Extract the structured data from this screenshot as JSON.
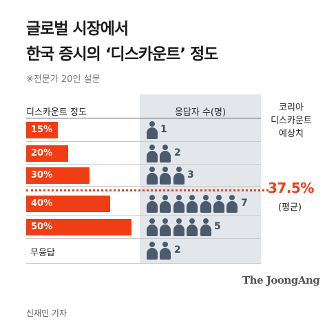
{
  "title_lines": [
    "글로벌 시장에서",
    "한국 증시의 ‘디스카운트’ 정도"
  ],
  "subtitle": "※전문가 20인 설문",
  "headers": {
    "left": "디스카운트 정도",
    "middle": "응답자 수(명)",
    "right_lines": [
      "코리아",
      "디스카운트",
      "예상치"
    ]
  },
  "average": {
    "value": "37.5%",
    "note": "(평균)"
  },
  "brand": "The JoongAng",
  "credit": "신재민 기자",
  "colors": {
    "bar": "#f03e14",
    "person": "#4a5b6d",
    "panel": "#e3e7ec",
    "average_line": "#f03e14"
  },
  "chart_data": {
    "type": "bar",
    "categories": [
      "15%",
      "20%",
      "30%",
      "40%",
      "50%",
      "무응답"
    ],
    "bar_values": [
      15,
      20,
      30,
      40,
      50,
      null
    ],
    "respondents": [
      1,
      2,
      3,
      7,
      5,
      2
    ],
    "average_label": "37.5%",
    "average_value": 37.5,
    "icon": "person-icon"
  }
}
